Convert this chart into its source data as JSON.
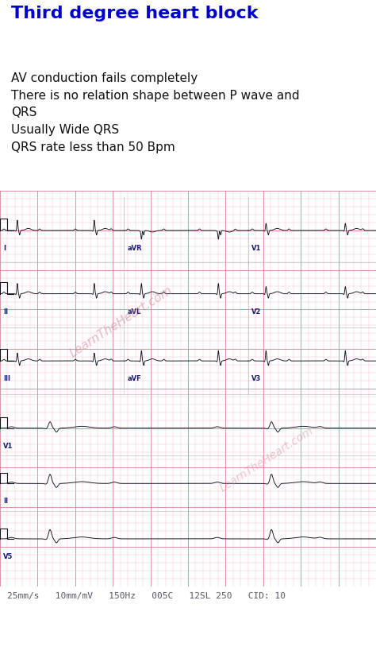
{
  "title": "Third degree heart block",
  "title_color": "#0000CC",
  "title_fontsize": 16,
  "body_text": "AV conduction fails completely\nThere is no relation shape between P wave and\nQRS\nUsually Wide QRS\nQRS rate less than 50 Bpm",
  "body_fontsize": 11,
  "bg_top": "#ffffff",
  "bg_ecg": "#f5c0cc",
  "grid_minor_color": "#e8a8b8",
  "grid_major_color": "#d07888",
  "ecg_line_color": "#111122",
  "lead_label_color": "#1a1a6e",
  "footer_text": "25mm/s   10mm/mV   150Hz   005C   12SL 250   CID: 10",
  "footer_color": "#555566",
  "footer_fontsize": 8,
  "watermark_text": "LearnTheHeart.com",
  "watermark_color": "#d08090",
  "bg_bottom": "#d8d8d8"
}
